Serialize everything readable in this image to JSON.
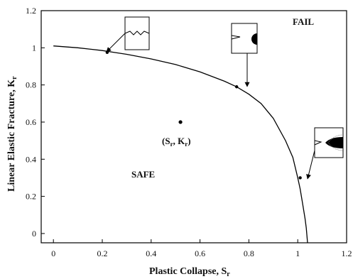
{
  "chart_data": {
    "type": "line",
    "xlabel": "Plastic Collapse, S",
    "xlabel_sub": "r",
    "ylabel": "Linear Elastic Fracture, K",
    "ylabel_sub": "r",
    "xlim": [
      -0.05,
      1.2
    ],
    "ylim": [
      -0.05,
      1.2
    ],
    "x_ticks": [
      "0",
      "0.2",
      "0.4",
      "0.6",
      "0.8",
      "1",
      "1.2"
    ],
    "y_ticks": [
      "0",
      "0.2",
      "0.4",
      "0.6",
      "0.8",
      "1",
      "1.2"
    ],
    "grid": false,
    "series": [
      {
        "x": [
          0,
          0.1,
          0.2,
          0.25,
          0.3,
          0.4,
          0.5,
          0.6,
          0.7,
          0.75,
          0.8,
          0.85,
          0.9,
          0.95,
          0.98,
          1.0,
          1.01,
          1.02,
          1.03,
          1.035,
          1.04
        ],
        "y": [
          1.01,
          1.0,
          0.985,
          0.975,
          0.965,
          0.94,
          0.91,
          0.87,
          0.82,
          0.79,
          0.75,
          0.7,
          0.62,
          0.5,
          0.41,
          0.3,
          0.24,
          0.16,
          0.08,
          0.03,
          -0.05
        ]
      }
    ],
    "points": [
      {
        "x": 0.22,
        "y": 0.975,
        "role": "curve-marker"
      },
      {
        "x": 0.75,
        "y": 0.79,
        "role": "curve-marker"
      },
      {
        "x": 1.01,
        "y": 0.3,
        "role": "curve-marker"
      },
      {
        "x": 0.52,
        "y": 0.6,
        "role": "assessment-point"
      }
    ],
    "annotations": {
      "fail": "FAIL",
      "safe": "SAFE",
      "point_label_open": "(S",
      "point_label_sub1": "r",
      "point_label_mid": ", K",
      "point_label_sub2": "r",
      "point_label_close": ")"
    }
  }
}
